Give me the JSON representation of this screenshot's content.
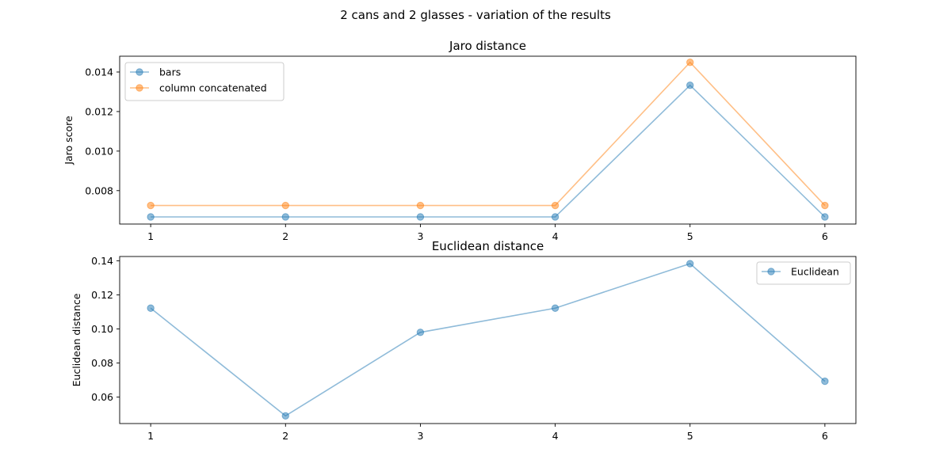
{
  "figure": {
    "title": "2 cans and 2 glasses - variation of the results"
  },
  "chart_data": [
    {
      "type": "line",
      "title": "Jaro distance",
      "xlabel": "",
      "ylabel": "Jaro score",
      "x": [
        1,
        2,
        3,
        4,
        5,
        6
      ],
      "xlim": [
        0.77,
        6.23
      ],
      "ylim": [
        0.00631,
        0.0148
      ],
      "yticks": [
        0.008,
        0.01,
        0.012,
        0.014
      ],
      "ytick_labels": [
        "0.008",
        "0.010",
        "0.012",
        "0.014"
      ],
      "grid": false,
      "legend_position": "top-left",
      "series": [
        {
          "name": "bars",
          "color": "#1f77b4",
          "values": [
            0.00667,
            0.00667,
            0.00667,
            0.00667,
            0.01333,
            0.00667
          ]
        },
        {
          "name": "column concatenated",
          "color": "#ff7f0e",
          "values": [
            0.00725,
            0.00725,
            0.00725,
            0.00725,
            0.01449,
            0.00725
          ]
        }
      ]
    },
    {
      "type": "line",
      "title": "Euclidean distance",
      "xlabel": "",
      "ylabel": "Euclidean distance",
      "x": [
        1,
        2,
        3,
        4,
        5,
        6
      ],
      "xlim": [
        0.77,
        6.23
      ],
      "ylim": [
        0.0445,
        0.1425
      ],
      "yticks": [
        0.06,
        0.08,
        0.1,
        0.12,
        0.14
      ],
      "ytick_labels": [
        "0.06",
        "0.08",
        "0.10",
        "0.12",
        "0.14"
      ],
      "grid": false,
      "legend_position": "top-right",
      "series": [
        {
          "name": "Euclidean",
          "color": "#1f77b4",
          "values": [
            0.1122,
            0.049,
            0.098,
            0.1122,
            0.1383,
            0.0693
          ]
        }
      ]
    }
  ]
}
